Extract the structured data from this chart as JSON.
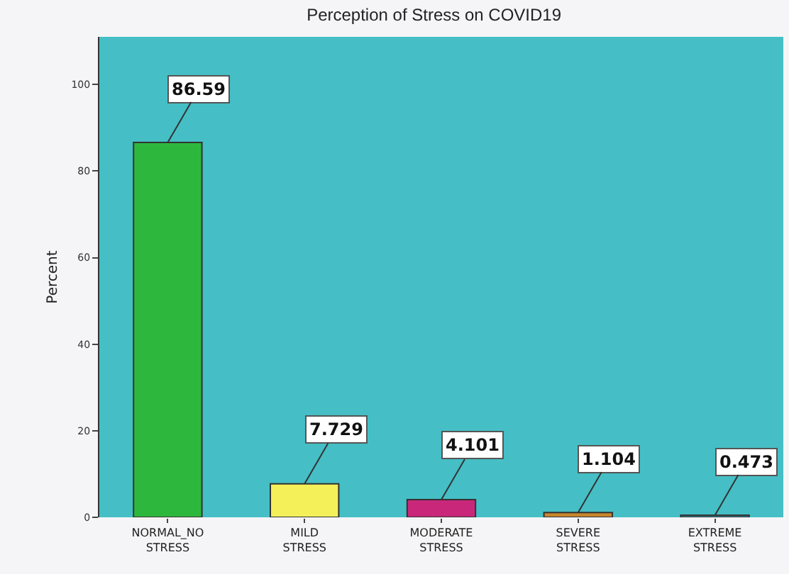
{
  "chart_data": {
    "type": "bar",
    "title": "Perception of Stress on COVID19",
    "ylabel": "Percent",
    "categories": [
      "NORMAL_NO STRESS",
      "MILD STRESS",
      "MODERATE STRESS",
      "SEVERE STRESS",
      "EXTREME STRESS"
    ],
    "values": [
      86.59,
      7.729,
      4.101,
      1.104,
      0.473
    ],
    "colors": [
      "#2db83d",
      "#f4f05a",
      "#c8277a",
      "#c8862a",
      "#2a7f8a"
    ],
    "ylim": [
      0,
      111
    ],
    "yticks": [
      0,
      20,
      40,
      60,
      80,
      100
    ],
    "grid": false,
    "data_labels": true
  }
}
